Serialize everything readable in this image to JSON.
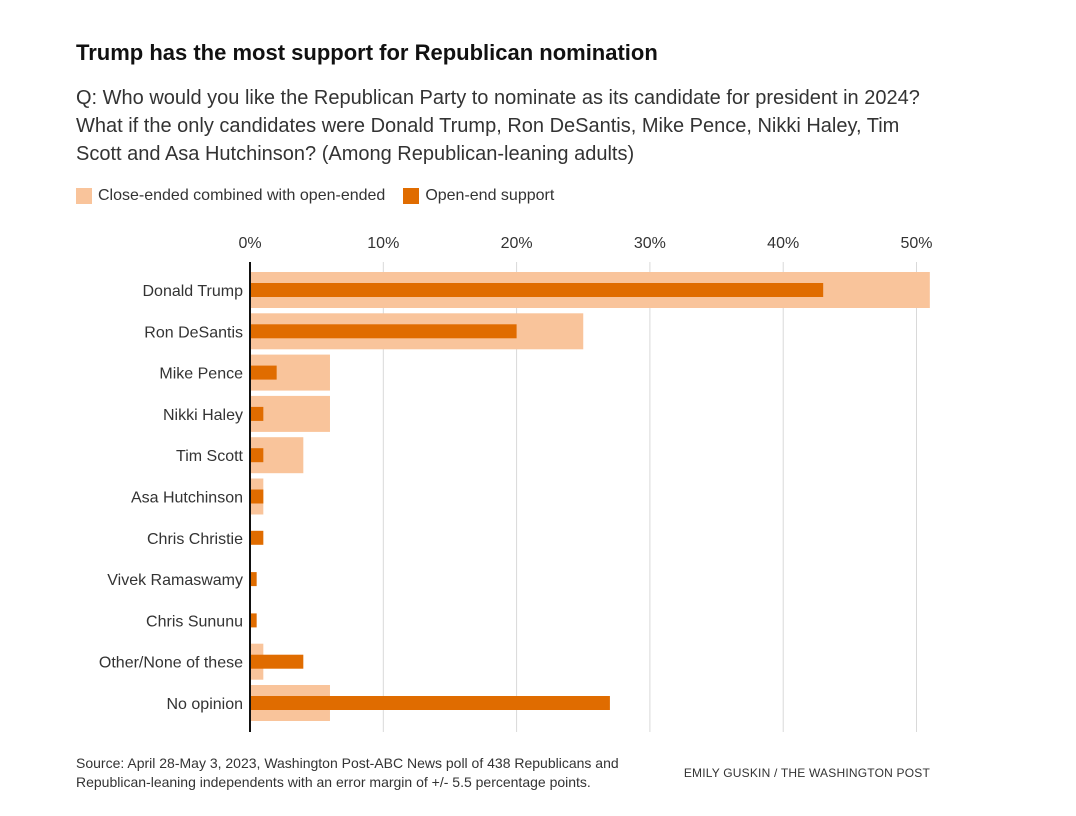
{
  "chart_data": {
    "type": "bar",
    "orientation": "horizontal",
    "title": "Trump has the most support for Republican nomination",
    "subtitle": "Q: Who would you like the Republican Party to nominate as its candidate for president in 2024? What if the only candidates were Donald Trump, Ron DeSantis, Mike Pence, Nikki Haley, Tim Scott and Asa Hutchinson? (Among Republican-leaning adults)",
    "categories": [
      "Donald Trump",
      "Ron DeSantis",
      "Mike Pence",
      "Nikki Haley",
      "Tim Scott",
      "Asa Hutchinson",
      "Chris Christie",
      "Vivek Ramaswamy",
      "Chris Sununu",
      "Other/None of these",
      "No opinion"
    ],
    "series": [
      {
        "name": "Close-ended combined with open-ended",
        "color": "#f9c49b",
        "values": [
          51,
          25,
          6,
          6,
          4,
          1,
          0,
          0,
          0,
          1,
          6
        ]
      },
      {
        "name": "Open-end support",
        "color": "#e06c00",
        "values": [
          43,
          20,
          2,
          1,
          1,
          1,
          1,
          0.5,
          0.5,
          4,
          27
        ]
      }
    ],
    "x_ticks": [
      "0%",
      "10%",
      "20%",
      "30%",
      "40%",
      "50%"
    ],
    "xlim": [
      0,
      51
    ],
    "grid": true,
    "legend_position": "top-left",
    "source": "Source: April 28-May 3, 2023, Washington Post-ABC News poll of 438 Republicans and Republican-leaning independents with an error margin of +/- 5.5 percentage points.",
    "credit": "EMILY GUSKIN / THE WASHINGTON POST"
  }
}
